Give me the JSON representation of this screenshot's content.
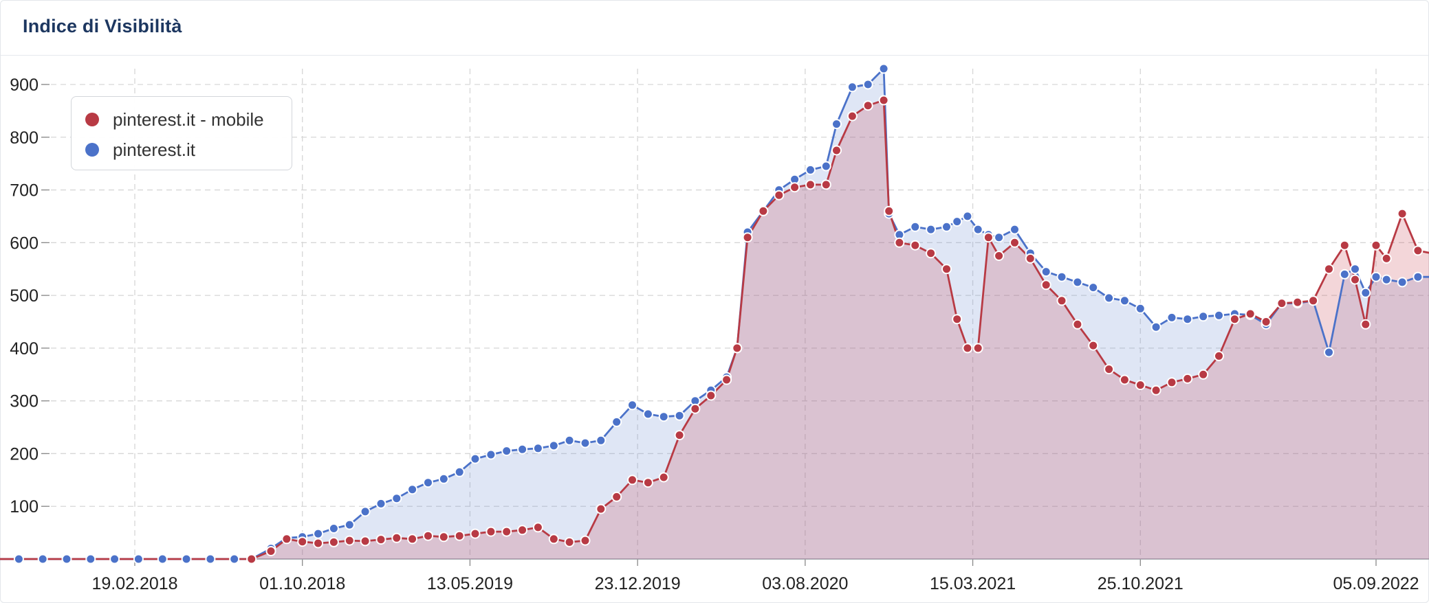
{
  "header": {
    "title": "Indice di Visibilità"
  },
  "colors": {
    "mobile": "#b83a44",
    "desktop": "#4b72c9",
    "mobile_fill": "rgba(200,70,80,0.22)",
    "desktop_fill": "rgba(110,140,210,0.22)",
    "grid": "#d6d6d6",
    "axis_text": "#222222"
  },
  "chart_data": {
    "type": "area",
    "title": "Indice di Visibilità",
    "xlabel": "",
    "ylabel": "",
    "x_range": [
      "2017-08-16",
      "2022-12-05"
    ],
    "ylim": [
      0,
      950
    ],
    "y_ticks": [
      100,
      200,
      300,
      400,
      500,
      600,
      700,
      800,
      900
    ],
    "x_ticks": [
      "19.02.2018",
      "01.10.2018",
      "13.05.2019",
      "23.12.2019",
      "03.08.2020",
      "15.03.2021",
      "25.10.2021",
      "05.09.2022"
    ],
    "grid": true,
    "legend_position": "top-left",
    "series": [
      {
        "name": "pinterest.it - mobile",
        "color": "#b83a44",
        "points": [
          [
            "2017-08-16",
            0
          ],
          [
            "2018-07-25",
            0
          ],
          [
            "2018-08-20",
            15
          ],
          [
            "2018-09-10",
            38
          ],
          [
            "2018-10-01",
            33
          ],
          [
            "2018-10-22",
            30
          ],
          [
            "2018-11-12",
            32
          ],
          [
            "2018-12-03",
            35
          ],
          [
            "2018-12-24",
            34
          ],
          [
            "2019-01-14",
            37
          ],
          [
            "2019-02-04",
            40
          ],
          [
            "2019-02-25",
            38
          ],
          [
            "2019-03-18",
            44
          ],
          [
            "2019-04-08",
            42
          ],
          [
            "2019-04-29",
            44
          ],
          [
            "2019-05-20",
            48
          ],
          [
            "2019-06-10",
            52
          ],
          [
            "2019-07-01",
            52
          ],
          [
            "2019-07-22",
            55
          ],
          [
            "2019-08-12",
            60
          ],
          [
            "2019-09-02",
            38
          ],
          [
            "2019-09-23",
            32
          ],
          [
            "2019-10-14",
            35
          ],
          [
            "2019-11-04",
            95
          ],
          [
            "2019-11-25",
            118
          ],
          [
            "2019-12-16",
            150
          ],
          [
            "2020-01-06",
            145
          ],
          [
            "2020-01-27",
            155
          ],
          [
            "2020-02-17",
            235
          ],
          [
            "2020-03-09",
            285
          ],
          [
            "2020-03-30",
            310
          ],
          [
            "2020-04-20",
            340
          ],
          [
            "2020-05-04",
            400
          ],
          [
            "2020-05-18",
            610
          ],
          [
            "2020-06-08",
            660
          ],
          [
            "2020-06-29",
            690
          ],
          [
            "2020-07-20",
            705
          ],
          [
            "2020-08-10",
            710
          ],
          [
            "2020-08-31",
            710
          ],
          [
            "2020-09-14",
            775
          ],
          [
            "2020-10-05",
            840
          ],
          [
            "2020-10-26",
            860
          ],
          [
            "2020-11-16",
            870
          ],
          [
            "2020-11-23",
            660
          ],
          [
            "2020-12-07",
            600
          ],
          [
            "2020-12-28",
            595
          ],
          [
            "2021-01-18",
            580
          ],
          [
            "2021-02-08",
            550
          ],
          [
            "2021-02-22",
            455
          ],
          [
            "2021-03-08",
            400
          ],
          [
            "2021-03-22",
            400
          ],
          [
            "2021-04-05",
            610
          ],
          [
            "2021-04-19",
            575
          ],
          [
            "2021-05-10",
            600
          ],
          [
            "2021-05-31",
            570
          ],
          [
            "2021-06-21",
            520
          ],
          [
            "2021-07-12",
            490
          ],
          [
            "2021-08-02",
            445
          ],
          [
            "2021-08-23",
            405
          ],
          [
            "2021-09-13",
            360
          ],
          [
            "2021-10-04",
            340
          ],
          [
            "2021-10-25",
            330
          ],
          [
            "2021-11-15",
            320
          ],
          [
            "2021-12-06",
            335
          ],
          [
            "2021-12-27",
            342
          ],
          [
            "2022-01-17",
            350
          ],
          [
            "2022-02-07",
            385
          ],
          [
            "2022-02-28",
            455
          ],
          [
            "2022-03-21",
            465
          ],
          [
            "2022-04-11",
            450
          ],
          [
            "2022-05-02",
            485
          ],
          [
            "2022-05-23",
            487
          ],
          [
            "2022-06-13",
            490
          ],
          [
            "2022-07-04",
            550
          ],
          [
            "2022-07-25",
            595
          ],
          [
            "2022-08-08",
            530
          ],
          [
            "2022-08-22",
            445
          ],
          [
            "2022-09-05",
            595
          ],
          [
            "2022-09-19",
            570
          ],
          [
            "2022-10-10",
            655
          ],
          [
            "2022-10-31",
            585
          ],
          [
            "2022-12-05",
            575
          ]
        ]
      },
      {
        "name": "pinterest.it",
        "color": "#4b72c9",
        "points": [
          [
            "2017-08-16",
            0
          ],
          [
            "2018-07-25",
            0
          ],
          [
            "2018-08-20",
            20
          ],
          [
            "2018-09-10",
            40
          ],
          [
            "2018-10-01",
            42
          ],
          [
            "2018-10-22",
            48
          ],
          [
            "2018-11-12",
            58
          ],
          [
            "2018-12-03",
            65
          ],
          [
            "2018-12-24",
            90
          ],
          [
            "2019-01-14",
            105
          ],
          [
            "2019-02-04",
            115
          ],
          [
            "2019-02-25",
            132
          ],
          [
            "2019-03-18",
            145
          ],
          [
            "2019-04-08",
            152
          ],
          [
            "2019-04-29",
            165
          ],
          [
            "2019-05-20",
            190
          ],
          [
            "2019-06-10",
            198
          ],
          [
            "2019-07-01",
            205
          ],
          [
            "2019-07-22",
            208
          ],
          [
            "2019-08-12",
            210
          ],
          [
            "2019-09-02",
            215
          ],
          [
            "2019-09-23",
            225
          ],
          [
            "2019-10-14",
            220
          ],
          [
            "2019-11-04",
            225
          ],
          [
            "2019-11-25",
            260
          ],
          [
            "2019-12-16",
            292
          ],
          [
            "2020-01-06",
            275
          ],
          [
            "2020-01-27",
            270
          ],
          [
            "2020-02-17",
            272
          ],
          [
            "2020-03-09",
            300
          ],
          [
            "2020-03-30",
            320
          ],
          [
            "2020-04-20",
            345
          ],
          [
            "2020-05-04",
            400
          ],
          [
            "2020-05-18",
            620
          ],
          [
            "2020-06-08",
            660
          ],
          [
            "2020-06-29",
            700
          ],
          [
            "2020-07-20",
            720
          ],
          [
            "2020-08-10",
            738
          ],
          [
            "2020-08-31",
            745
          ],
          [
            "2020-09-14",
            825
          ],
          [
            "2020-10-05",
            895
          ],
          [
            "2020-10-26",
            900
          ],
          [
            "2020-11-16",
            930
          ],
          [
            "2020-11-23",
            655
          ],
          [
            "2020-12-07",
            615
          ],
          [
            "2020-12-28",
            630
          ],
          [
            "2021-01-18",
            625
          ],
          [
            "2021-02-08",
            630
          ],
          [
            "2021-02-22",
            640
          ],
          [
            "2021-03-08",
            650
          ],
          [
            "2021-03-22",
            625
          ],
          [
            "2021-04-05",
            615
          ],
          [
            "2021-04-19",
            610
          ],
          [
            "2021-05-10",
            625
          ],
          [
            "2021-05-31",
            580
          ],
          [
            "2021-06-21",
            545
          ],
          [
            "2021-07-12",
            535
          ],
          [
            "2021-08-02",
            525
          ],
          [
            "2021-08-23",
            515
          ],
          [
            "2021-09-13",
            495
          ],
          [
            "2021-10-04",
            490
          ],
          [
            "2021-10-25",
            475
          ],
          [
            "2021-11-15",
            440
          ],
          [
            "2021-12-06",
            458
          ],
          [
            "2021-12-27",
            455
          ],
          [
            "2022-01-17",
            460
          ],
          [
            "2022-02-07",
            462
          ],
          [
            "2022-02-28",
            465
          ],
          [
            "2022-03-21",
            463
          ],
          [
            "2022-04-11",
            445
          ],
          [
            "2022-05-02",
            485
          ],
          [
            "2022-05-23",
            485
          ],
          [
            "2022-06-13",
            490
          ],
          [
            "2022-07-04",
            392
          ],
          [
            "2022-07-25",
            540
          ],
          [
            "2022-08-08",
            550
          ],
          [
            "2022-08-22",
            505
          ],
          [
            "2022-09-05",
            535
          ],
          [
            "2022-09-19",
            530
          ],
          [
            "2022-10-10",
            525
          ],
          [
            "2022-10-31",
            535
          ],
          [
            "2022-12-05",
            535
          ]
        ]
      }
    ]
  }
}
